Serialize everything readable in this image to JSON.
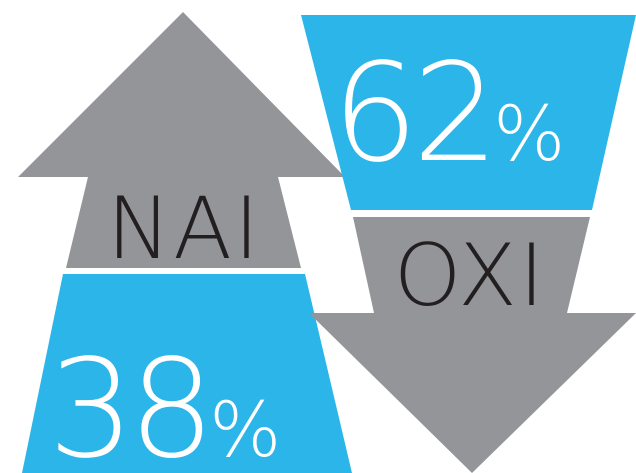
{
  "yes": {
    "label": "NAI",
    "value": "38",
    "unit": "%",
    "percent": 38
  },
  "no": {
    "label": "OXI",
    "value": "62",
    "unit": "%",
    "percent": 62
  },
  "colors": {
    "blue": "#2bb5e8",
    "gray": "#939598",
    "white": "#ffffff",
    "dark_text": "#231f20"
  }
}
